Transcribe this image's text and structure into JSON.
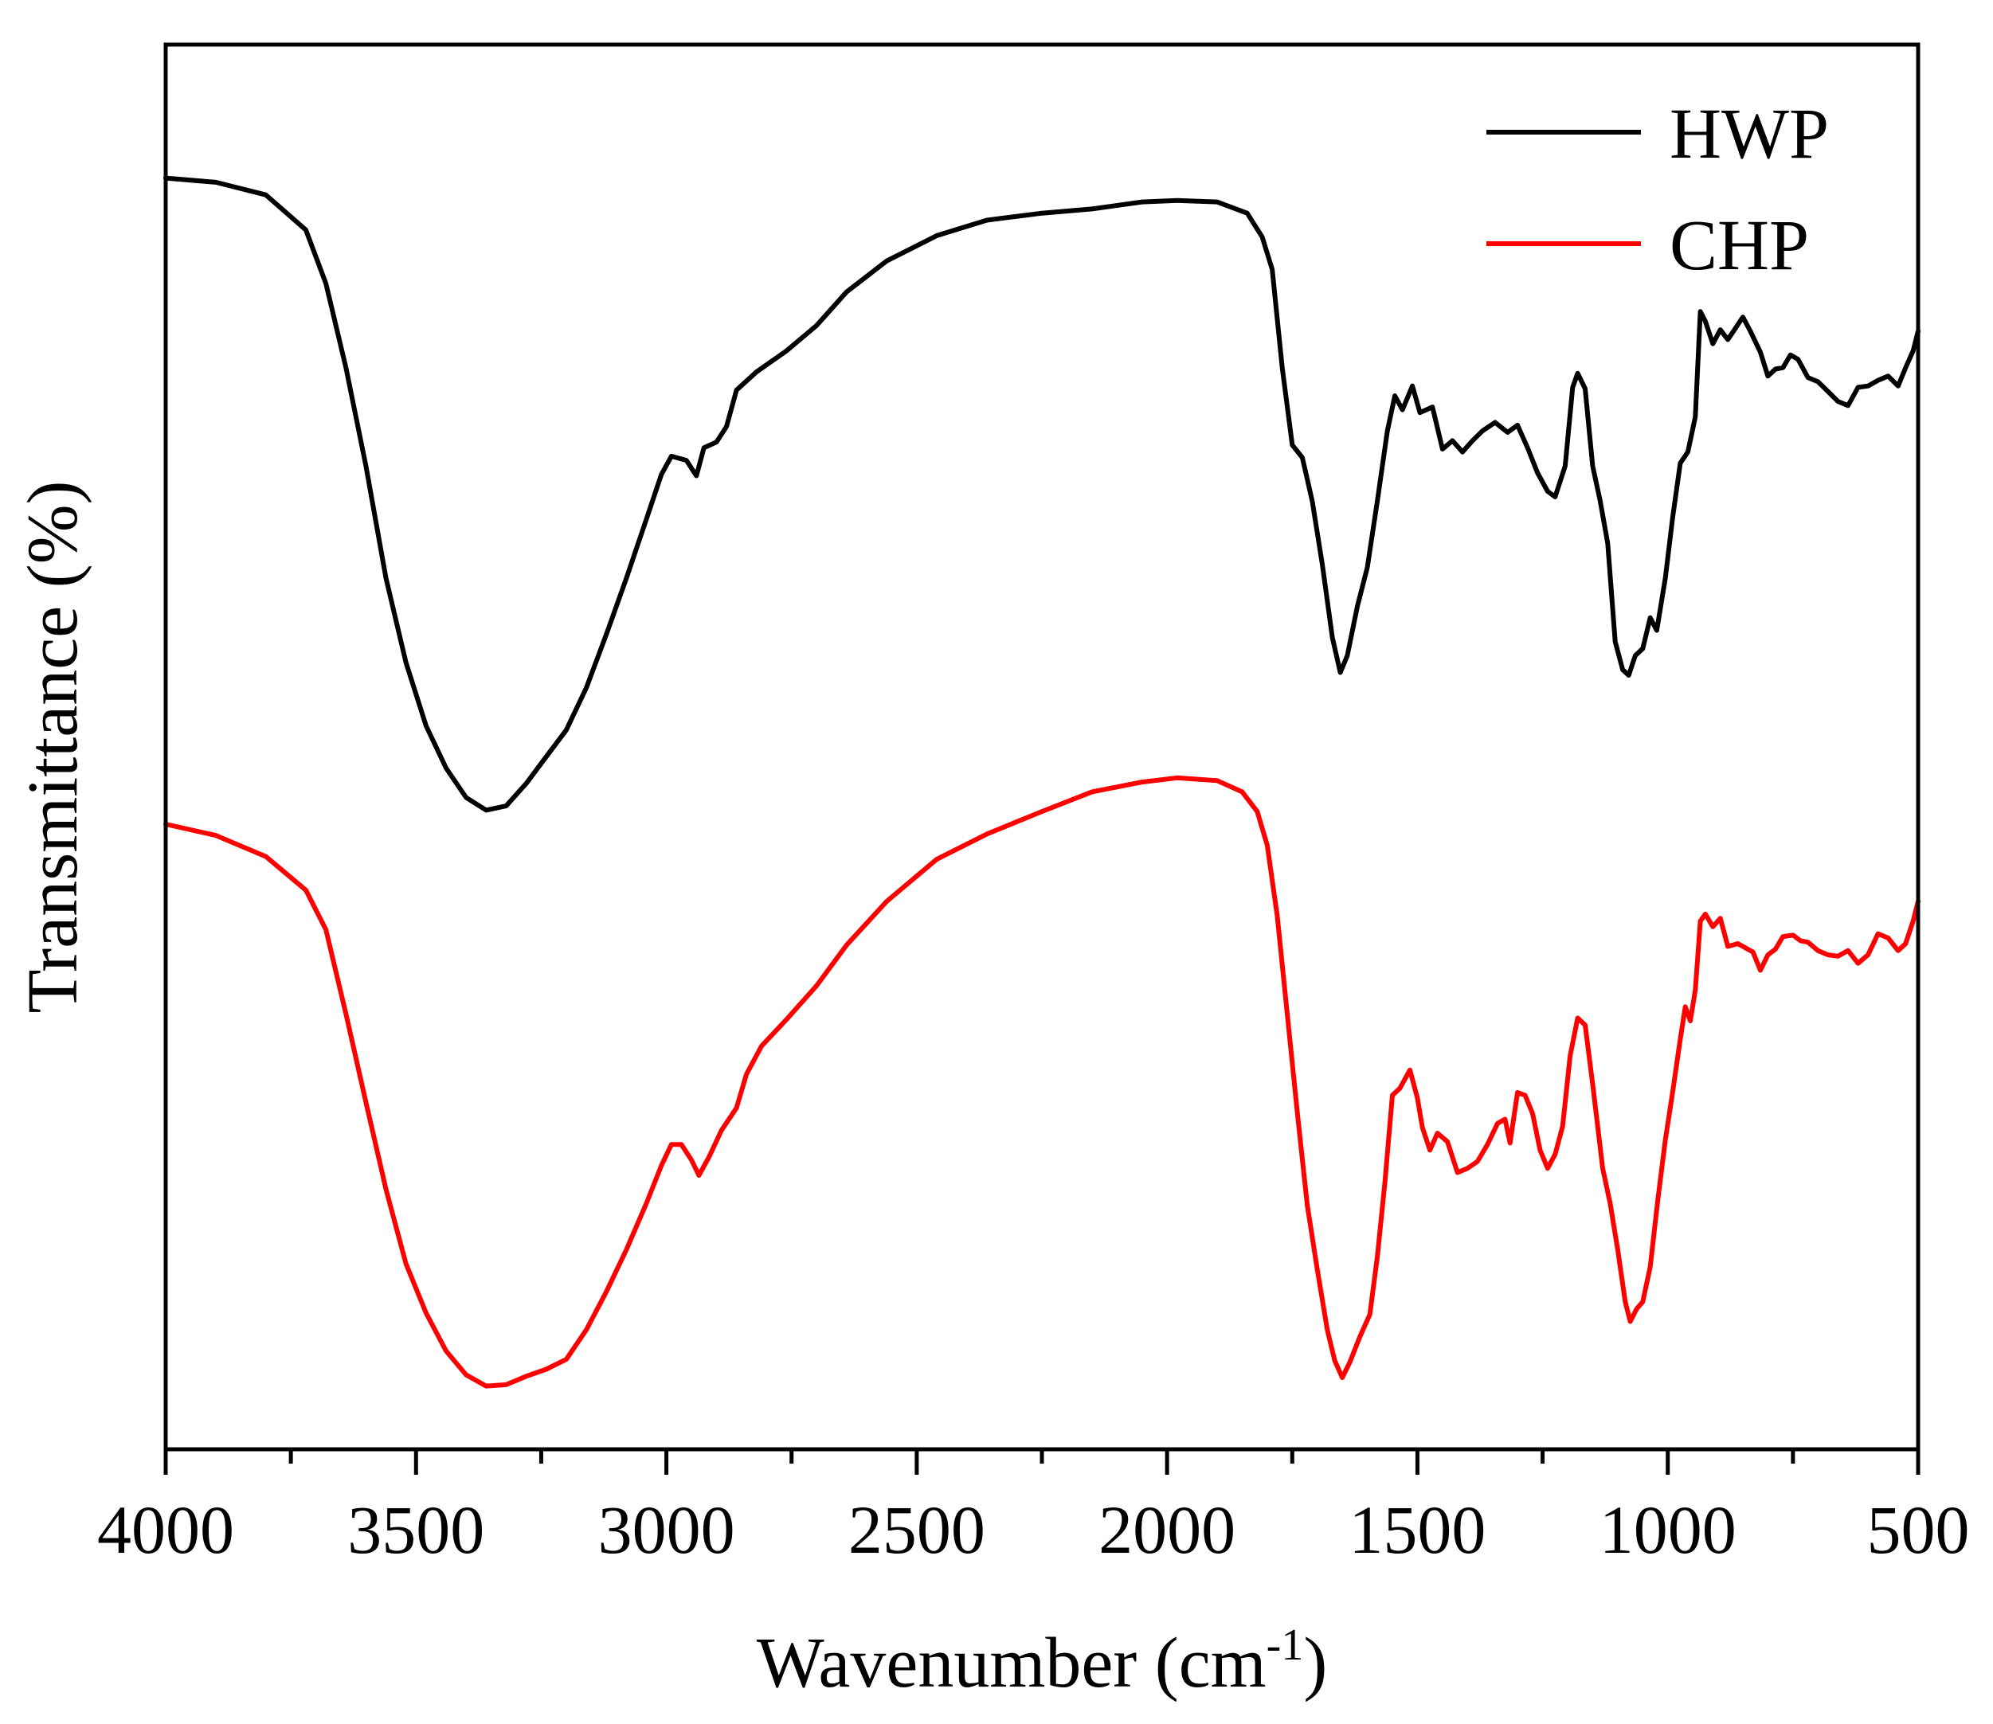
{
  "chart_data": {
    "type": "line",
    "title": "",
    "xlabel": "Wavenumber (cm",
    "xlabel_sup": "-1",
    "xlabel_close": ")",
    "ylabel": "Transmittance (%)",
    "xlim": [
      4000,
      500
    ],
    "ylim": [
      0,
      100
    ],
    "x_ticks": [
      4000,
      3500,
      3000,
      2500,
      2000,
      1500,
      1000,
      500
    ],
    "x_minor_ticks": [
      3750,
      3250,
      2750,
      2250,
      1750,
      1250,
      750
    ],
    "y_ticks_shown": false,
    "grid": false,
    "legend": "top-right",
    "series": [
      {
        "name": "HWP",
        "color": "#000000",
        "points": [
          [
            4000,
            90.5
          ],
          [
            3900,
            90.2
          ],
          [
            3800,
            89.3
          ],
          [
            3720,
            86.8
          ],
          [
            3680,
            83
          ],
          [
            3640,
            77
          ],
          [
            3600,
            70
          ],
          [
            3560,
            62
          ],
          [
            3520,
            56
          ],
          [
            3480,
            51.5
          ],
          [
            3440,
            48.5
          ],
          [
            3400,
            46.4
          ],
          [
            3360,
            45.5
          ],
          [
            3320,
            45.8
          ],
          [
            3280,
            47.4
          ],
          [
            3240,
            49.3
          ],
          [
            3200,
            51.2
          ],
          [
            3160,
            54.2
          ],
          [
            3120,
            58
          ],
          [
            3080,
            62
          ],
          [
            3040,
            66.2
          ],
          [
            3010,
            69.4
          ],
          [
            2990,
            70.7
          ],
          [
            2960,
            70.4
          ],
          [
            2940,
            69.3
          ],
          [
            2925,
            71.3
          ],
          [
            2900,
            71.7
          ],
          [
            2880,
            72.8
          ],
          [
            2860,
            75.4
          ],
          [
            2820,
            76.7
          ],
          [
            2760,
            78.2
          ],
          [
            2700,
            80
          ],
          [
            2640,
            82.4
          ],
          [
            2560,
            84.6
          ],
          [
            2460,
            86.4
          ],
          [
            2360,
            87.5
          ],
          [
            2250,
            88
          ],
          [
            2150,
            88.3
          ],
          [
            2050,
            88.8
          ],
          [
            1980,
            88.9
          ],
          [
            1900,
            88.8
          ],
          [
            1840,
            88
          ],
          [
            1810,
            86.3
          ],
          [
            1790,
            84
          ],
          [
            1770,
            77
          ],
          [
            1750,
            71.5
          ],
          [
            1730,
            70.6
          ],
          [
            1710,
            67.5
          ],
          [
            1690,
            63
          ],
          [
            1670,
            57.8
          ],
          [
            1654,
            55.3
          ],
          [
            1640,
            56.5
          ],
          [
            1620,
            60
          ],
          [
            1600,
            62.8
          ],
          [
            1580,
            67.5
          ],
          [
            1560,
            72.5
          ],
          [
            1545,
            75
          ],
          [
            1530,
            74
          ],
          [
            1510,
            75.7
          ],
          [
            1495,
            73.8
          ],
          [
            1470,
            74.2
          ],
          [
            1450,
            71.2
          ],
          [
            1430,
            71.8
          ],
          [
            1410,
            71
          ],
          [
            1390,
            71.8
          ],
          [
            1370,
            72.5
          ],
          [
            1345,
            73.1
          ],
          [
            1320,
            72.4
          ],
          [
            1300,
            72.9
          ],
          [
            1280,
            71.3
          ],
          [
            1260,
            69.5
          ],
          [
            1240,
            68.2
          ],
          [
            1225,
            67.8
          ],
          [
            1205,
            70
          ],
          [
            1190,
            75.6
          ],
          [
            1180,
            76.6
          ],
          [
            1165,
            75.5
          ],
          [
            1150,
            70
          ],
          [
            1135,
            67.5
          ],
          [
            1120,
            64.5
          ],
          [
            1105,
            57.5
          ],
          [
            1090,
            55.5
          ],
          [
            1078,
            55.1
          ],
          [
            1065,
            56.5
          ],
          [
            1050,
            57
          ],
          [
            1035,
            59.2
          ],
          [
            1022,
            58.3
          ],
          [
            1005,
            62
          ],
          [
            990,
            66.4
          ],
          [
            975,
            70.2
          ],
          [
            960,
            71
          ],
          [
            945,
            73.5
          ],
          [
            935,
            81
          ],
          [
            925,
            80.3
          ],
          [
            910,
            78.7
          ],
          [
            895,
            79.7
          ],
          [
            880,
            79
          ],
          [
            865,
            79.8
          ],
          [
            850,
            80.6
          ],
          [
            835,
            79.6
          ],
          [
            815,
            78.1
          ],
          [
            800,
            76.4
          ],
          [
            785,
            76.9
          ],
          [
            770,
            77
          ],
          [
            755,
            77.9
          ],
          [
            740,
            77.6
          ],
          [
            720,
            76.3
          ],
          [
            700,
            76
          ],
          [
            680,
            75.3
          ],
          [
            660,
            74.6
          ],
          [
            640,
            74.3
          ],
          [
            620,
            75.6
          ],
          [
            600,
            75.7
          ],
          [
            580,
            76.1
          ],
          [
            560,
            76.4
          ],
          [
            540,
            75.7
          ],
          [
            525,
            77
          ],
          [
            510,
            78.2
          ],
          [
            500,
            79.6
          ]
        ]
      },
      {
        "name": "CHP",
        "color": "#ff0000",
        "points": [
          [
            4000,
            44.5
          ],
          [
            3900,
            43.7
          ],
          [
            3800,
            42.2
          ],
          [
            3720,
            39.8
          ],
          [
            3680,
            37
          ],
          [
            3640,
            31
          ],
          [
            3600,
            24.7
          ],
          [
            3560,
            18.5
          ],
          [
            3520,
            13.2
          ],
          [
            3480,
            9.7
          ],
          [
            3440,
            7
          ],
          [
            3400,
            5.3
          ],
          [
            3360,
            4.5
          ],
          [
            3320,
            4.6
          ],
          [
            3280,
            5.2
          ],
          [
            3240,
            5.7
          ],
          [
            3200,
            6.4
          ],
          [
            3160,
            8.5
          ],
          [
            3120,
            11.2
          ],
          [
            3080,
            14.2
          ],
          [
            3040,
            17.5
          ],
          [
            3010,
            20.2
          ],
          [
            2990,
            21.7
          ],
          [
            2970,
            21.7
          ],
          [
            2950,
            20.6
          ],
          [
            2935,
            19.5
          ],
          [
            2915,
            20.8
          ],
          [
            2890,
            22.7
          ],
          [
            2860,
            24.3
          ],
          [
            2840,
            26.7
          ],
          [
            2810,
            28.7
          ],
          [
            2760,
            30.6
          ],
          [
            2700,
            33
          ],
          [
            2640,
            35.9
          ],
          [
            2560,
            39
          ],
          [
            2460,
            42
          ],
          [
            2360,
            43.8
          ],
          [
            2250,
            45.4
          ],
          [
            2150,
            46.8
          ],
          [
            2050,
            47.5
          ],
          [
            1980,
            47.8
          ],
          [
            1900,
            47.6
          ],
          [
            1850,
            46.8
          ],
          [
            1820,
            45.4
          ],
          [
            1800,
            43
          ],
          [
            1780,
            38
          ],
          [
            1760,
            31
          ],
          [
            1740,
            24
          ],
          [
            1720,
            17.4
          ],
          [
            1700,
            12.8
          ],
          [
            1680,
            8.5
          ],
          [
            1665,
            6.3
          ],
          [
            1650,
            5.1
          ],
          [
            1635,
            6.2
          ],
          [
            1615,
            8
          ],
          [
            1595,
            9.6
          ],
          [
            1580,
            13.7
          ],
          [
            1565,
            19
          ],
          [
            1550,
            25.2
          ],
          [
            1535,
            25.7
          ],
          [
            1515,
            27
          ],
          [
            1500,
            25
          ],
          [
            1490,
            22.9
          ],
          [
            1475,
            21.3
          ],
          [
            1460,
            22.5
          ],
          [
            1440,
            21.9
          ],
          [
            1420,
            19.7
          ],
          [
            1400,
            20
          ],
          [
            1380,
            20.5
          ],
          [
            1360,
            21.7
          ],
          [
            1340,
            23.2
          ],
          [
            1325,
            23.5
          ],
          [
            1315,
            21.8
          ],
          [
            1300,
            25.4
          ],
          [
            1285,
            25.2
          ],
          [
            1270,
            23.9
          ],
          [
            1255,
            21.3
          ],
          [
            1240,
            20
          ],
          [
            1225,
            21
          ],
          [
            1210,
            23
          ],
          [
            1195,
            28
          ],
          [
            1180,
            30.7
          ],
          [
            1165,
            30.2
          ],
          [
            1150,
            26
          ],
          [
            1130,
            20
          ],
          [
            1115,
            17.5
          ],
          [
            1100,
            14.2
          ],
          [
            1085,
            10.5
          ],
          [
            1075,
            9.1
          ],
          [
            1062,
            10
          ],
          [
            1050,
            10.5
          ],
          [
            1035,
            13
          ],
          [
            1020,
            17.7
          ],
          [
            1005,
            22
          ],
          [
            990,
            25.5
          ],
          [
            975,
            29.2
          ],
          [
            965,
            31.5
          ],
          [
            955,
            30.5
          ],
          [
            945,
            32.7
          ],
          [
            935,
            37.6
          ],
          [
            925,
            38.1
          ],
          [
            910,
            37.2
          ],
          [
            895,
            37.8
          ],
          [
            880,
            35.8
          ],
          [
            860,
            36
          ],
          [
            845,
            35.7
          ],
          [
            830,
            35.4
          ],
          [
            815,
            34.1
          ],
          [
            800,
            35.2
          ],
          [
            785,
            35.6
          ],
          [
            770,
            36.5
          ],
          [
            750,
            36.6
          ],
          [
            735,
            36.2
          ],
          [
            720,
            36.1
          ],
          [
            700,
            35.5
          ],
          [
            680,
            35.2
          ],
          [
            660,
            35.1
          ],
          [
            640,
            35.5
          ],
          [
            620,
            34.6
          ],
          [
            600,
            35.2
          ],
          [
            580,
            36.7
          ],
          [
            560,
            36.4
          ],
          [
            540,
            35.5
          ],
          [
            525,
            36
          ],
          [
            510,
            37.6
          ],
          [
            500,
            39
          ]
        ]
      }
    ]
  }
}
